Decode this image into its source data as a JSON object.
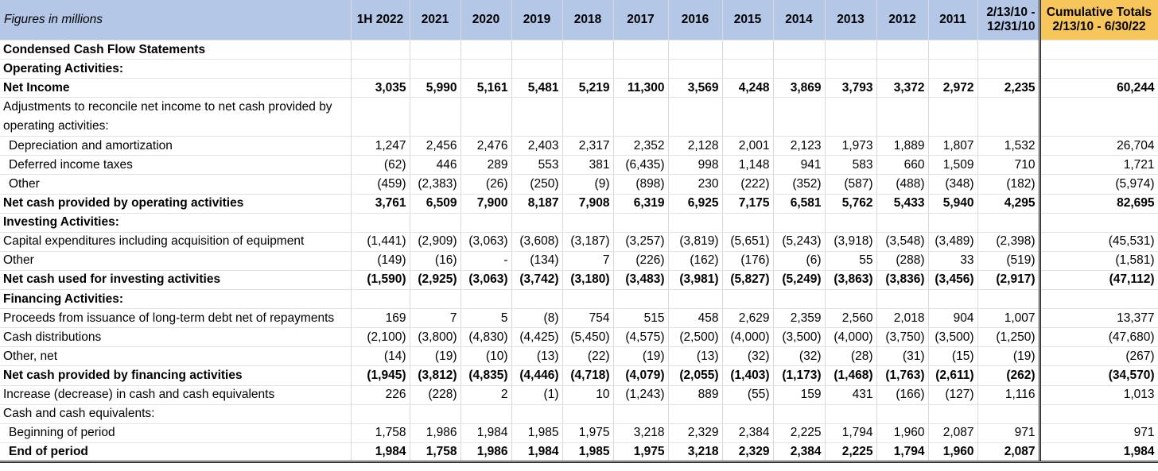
{
  "header": {
    "label": "Figures in millions",
    "years": [
      "1H 2022",
      "2021",
      "2020",
      "2019",
      "2018",
      "2017",
      "2016",
      "2015",
      "2014",
      "2013",
      "2012",
      "2011"
    ],
    "first_period_line1": "2/13/10 -",
    "first_period_line2": "12/31/10",
    "cumulative_line1": "Cumulative Totals",
    "cumulative_line2": "2/13/10 - 6/30/22"
  },
  "rows": [
    {
      "label": "Condensed Cash Flow Statements",
      "style": "bold",
      "values": [],
      "cum": ""
    },
    {
      "label": "Operating Activities:",
      "style": "bold",
      "values": [],
      "cum": ""
    },
    {
      "label": "Net Income",
      "style": "bold",
      "values": [
        "3,035",
        "5,990",
        "5,161",
        "5,481",
        "5,219",
        "11,300",
        "3,569",
        "4,248",
        "3,869",
        "3,793",
        "3,372",
        "2,972",
        "2,235"
      ],
      "cum": "60,244"
    },
    {
      "label": "Adjustments to reconcile net income to net cash provided by operating activities:",
      "style": "two-line",
      "values": [],
      "cum": ""
    },
    {
      "label": "Depreciation and amortization",
      "style": "indent",
      "values": [
        "1,247",
        "2,456",
        "2,476",
        "2,403",
        "2,317",
        "2,352",
        "2,128",
        "2,001",
        "2,123",
        "1,973",
        "1,889",
        "1,807",
        "1,532"
      ],
      "cum": "26,704"
    },
    {
      "label": "Deferred income taxes",
      "style": "indent",
      "values": [
        "(62)",
        "446",
        "289",
        "553",
        "381",
        "(6,435)",
        "998",
        "1,148",
        "941",
        "583",
        "660",
        "1,509",
        "710"
      ],
      "cum": "1,721"
    },
    {
      "label": "Other",
      "style": "indent",
      "values": [
        "(459)",
        "(2,383)",
        "(26)",
        "(250)",
        "(9)",
        "(898)",
        "230",
        "(222)",
        "(352)",
        "(587)",
        "(488)",
        "(348)",
        "(182)"
      ],
      "cum": "(5,974)"
    },
    {
      "label": "Net cash provided by operating activities",
      "style": "bold total",
      "values": [
        "3,761",
        "6,509",
        "7,900",
        "8,187",
        "7,908",
        "6,319",
        "6,925",
        "7,175",
        "6,581",
        "5,762",
        "5,433",
        "5,940",
        "4,295"
      ],
      "cum": "82,695"
    },
    {
      "label": "Investing Activities:",
      "style": "bold",
      "values": [],
      "cum": ""
    },
    {
      "label": "Capital expenditures including acquisition of equipment",
      "style": "",
      "values": [
        "(1,441)",
        "(2,909)",
        "(3,063)",
        "(3,608)",
        "(3,187)",
        "(3,257)",
        "(3,819)",
        "(5,651)",
        "(5,243)",
        "(3,918)",
        "(3,548)",
        "(3,489)",
        "(2,398)"
      ],
      "cum": "(45,531)"
    },
    {
      "label": "Other",
      "style": "",
      "values": [
        "(149)",
        "(16)",
        "-",
        "(134)",
        "7",
        "(226)",
        "(162)",
        "(176)",
        "(6)",
        "55",
        "(288)",
        "33",
        "(519)"
      ],
      "cum": "(1,581)"
    },
    {
      "label": "Net cash used for investing activities",
      "style": "bold total",
      "values": [
        "(1,590)",
        "(2,925)",
        "(3,063)",
        "(3,742)",
        "(3,180)",
        "(3,483)",
        "(3,981)",
        "(5,827)",
        "(5,249)",
        "(3,863)",
        "(3,836)",
        "(3,456)",
        "(2,917)"
      ],
      "cum": "(47,112)"
    },
    {
      "label": "Financing Activities:",
      "style": "bold",
      "values": [],
      "cum": ""
    },
    {
      "label": "Proceeds from issuance of long-term debt net of repayments",
      "style": "",
      "values": [
        "169",
        "7",
        "5",
        "(8)",
        "754",
        "515",
        "458",
        "2,629",
        "2,359",
        "2,560",
        "2,018",
        "904",
        "1,007"
      ],
      "cum": "13,377"
    },
    {
      "label": "Cash distributions",
      "style": "",
      "values": [
        "(2,100)",
        "(3,800)",
        "(4,830)",
        "(4,425)",
        "(5,450)",
        "(4,575)",
        "(2,500)",
        "(4,000)",
        "(3,500)",
        "(4,000)",
        "(3,750)",
        "(3,500)",
        "(1,250)"
      ],
      "cum": "(47,680)"
    },
    {
      "label": "Other, net",
      "style": "",
      "values": [
        "(14)",
        "(19)",
        "(10)",
        "(13)",
        "(22)",
        "(19)",
        "(13)",
        "(32)",
        "(32)",
        "(28)",
        "(31)",
        "(15)",
        "(19)"
      ],
      "cum": "(267)"
    },
    {
      "label": "Net cash provided by financing activities",
      "style": "bold total",
      "values": [
        "(1,945)",
        "(3,812)",
        "(4,835)",
        "(4,446)",
        "(4,718)",
        "(4,079)",
        "(2,055)",
        "(1,403)",
        "(1,173)",
        "(1,468)",
        "(1,763)",
        "(2,611)",
        "(262)"
      ],
      "cum": "(34,570)"
    },
    {
      "label": "Increase (decrease) in cash and cash equivalents",
      "style": "",
      "values": [
        "226",
        "(228)",
        "2",
        "(1)",
        "10",
        "(1,243)",
        "889",
        "(55)",
        "159",
        "431",
        "(166)",
        "(127)",
        "1,116"
      ],
      "cum": "1,013"
    },
    {
      "label": "Cash and cash equivalents:",
      "style": "",
      "values": [],
      "cum": ""
    },
    {
      "label": "Beginning of period",
      "style": "indent",
      "values": [
        "1,758",
        "1,986",
        "1,984",
        "1,985",
        "1,975",
        "3,218",
        "2,329",
        "2,384",
        "2,225",
        "1,794",
        "1,960",
        "2,087",
        "971"
      ],
      "cum": "971"
    },
    {
      "label": "End of period",
      "style": "bold indent final",
      "values": [
        "1,984",
        "1,758",
        "1,986",
        "1,984",
        "1,985",
        "1,975",
        "3,218",
        "2,329",
        "2,384",
        "2,225",
        "1,794",
        "1,960",
        "2,087"
      ],
      "cum": "1,984"
    }
  ]
}
